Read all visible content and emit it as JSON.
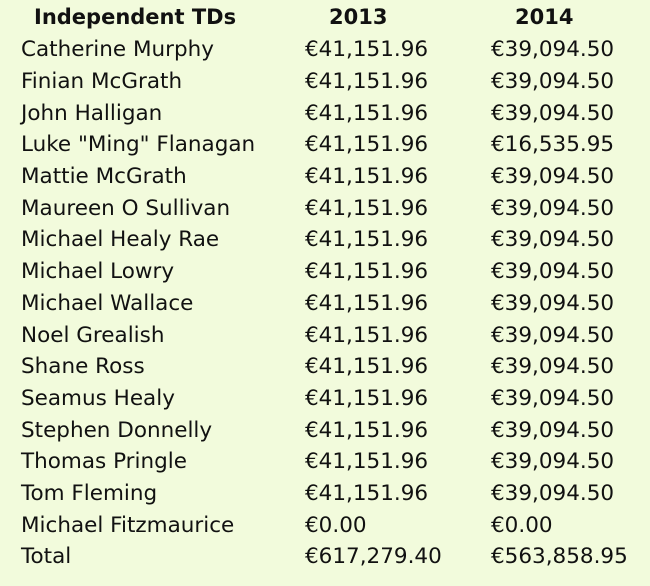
{
  "table": {
    "headers": {
      "name": "Independent TDs",
      "y2013": "2013",
      "y2014": "2014"
    },
    "rows": [
      {
        "name": "Catherine Murphy",
        "y2013": "€41,151.96",
        "y2014": "€39,094.50"
      },
      {
        "name": "Finian McGrath",
        "y2013": "€41,151.96",
        "y2014": "€39,094.50"
      },
      {
        "name": "John Halligan",
        "y2013": "€41,151.96",
        "y2014": "€39,094.50"
      },
      {
        "name": "Luke \"Ming\" Flanagan",
        "y2013": "€41,151.96",
        "y2014": "€16,535.95"
      },
      {
        "name": "Mattie McGrath",
        "y2013": "€41,151.96",
        "y2014": "€39,094.50"
      },
      {
        "name": "Maureen O Sullivan",
        "y2013": "€41,151.96",
        "y2014": "€39,094.50"
      },
      {
        "name": "Michael Healy Rae",
        "y2013": "€41,151.96",
        "y2014": "€39,094.50"
      },
      {
        "name": "Michael Lowry",
        "y2013": "€41,151.96",
        "y2014": "€39,094.50"
      },
      {
        "name": "Michael Wallace",
        "y2013": "€41,151.96",
        "y2014": "€39,094.50"
      },
      {
        "name": "Noel Grealish",
        "y2013": "€41,151.96",
        "y2014": "€39,094.50"
      },
      {
        "name": "Shane Ross",
        "y2013": "€41,151.96",
        "y2014": "€39,094.50"
      },
      {
        "name": "Seamus Healy",
        "y2013": "€41,151.96",
        "y2014": "€39,094.50"
      },
      {
        "name": "Stephen Donnelly",
        "y2013": "€41,151.96",
        "y2014": "€39,094.50"
      },
      {
        "name": "Thomas Pringle",
        "y2013": "€41,151.96",
        "y2014": "€39,094.50"
      },
      {
        "name": "Tom Fleming",
        "y2013": "€41,151.96",
        "y2014": "€39,094.50"
      },
      {
        "name": "Michael Fitzmaurice",
        "y2013": "€0.00",
        "y2014": "€0.00"
      },
      {
        "name": "Total",
        "y2013": "€617,279.40",
        "y2014": "€563,858.95"
      }
    ]
  },
  "colors": {
    "background": "#f2fbdc",
    "text": "#111111"
  }
}
